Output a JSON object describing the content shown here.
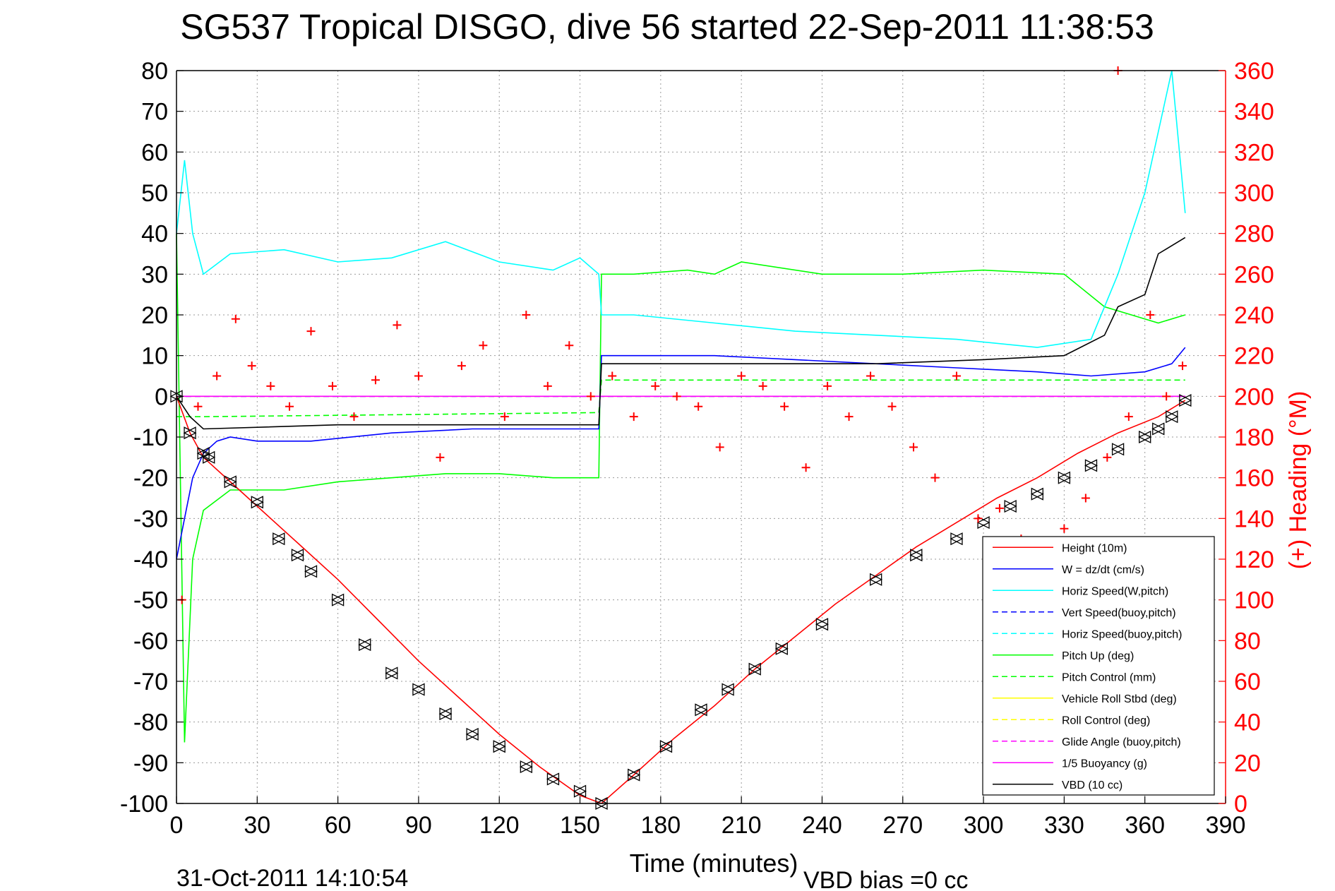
{
  "chart_data": {
    "type": "line",
    "title": "SG537 Tropical DISGO, dive 56 started 22-Sep-2011 11:38:53",
    "xlabel": "Time (minutes)",
    "ylabel_right": "(+) Heading (°M)",
    "footer_left": "31-Oct-2011 14:10:54",
    "footer_right": "VBD bias =0 cc",
    "xlim": [
      0,
      390
    ],
    "ylim": [
      -100,
      80
    ],
    "ylim_right": [
      0,
      360
    ],
    "x_ticks": [
      0,
      30,
      60,
      90,
      120,
      150,
      180,
      210,
      240,
      270,
      300,
      330,
      360,
      390
    ],
    "y_ticks": [
      -100,
      -90,
      -80,
      -70,
      -60,
      -50,
      -40,
      -30,
      -20,
      -10,
      0,
      10,
      20,
      30,
      40,
      50,
      60,
      70,
      80
    ],
    "y_ticks_right": [
      0,
      20,
      40,
      60,
      80,
      100,
      120,
      140,
      160,
      180,
      200,
      220,
      240,
      260,
      280,
      300,
      320,
      340,
      360
    ],
    "grid": true,
    "legend_position": "bottom-right",
    "colors": {
      "height": "#ff0000",
      "w": "#0000ff",
      "horiz_speed": "#00ffff",
      "vert_speed_model": "#0000ff",
      "horiz_speed_model": "#00ffff",
      "pitch": "#00ff00",
      "pitch_control": "#00ff00",
      "roll": "#ffff00",
      "roll_control": "#ffff00",
      "glide_angle": "#ff00ff",
      "buoyancy": "#ff00ff",
      "vbd": "#000000",
      "heading": "#ff0000",
      "right_axis": "#ff0000"
    },
    "series": [
      {
        "name": "Height (10m)",
        "key": "height",
        "style": "solid",
        "x": [
          0,
          5,
          10,
          20,
          30,
          45,
          60,
          75,
          90,
          105,
          120,
          135,
          150,
          158,
          170,
          185,
          200,
          215,
          230,
          245,
          260,
          275,
          290,
          305,
          320,
          335,
          350,
          365,
          375
        ],
        "y": [
          0,
          -9,
          -15,
          -21,
          -27,
          -36,
          -45,
          -55,
          -65,
          -74,
          -83,
          -91,
          -98,
          -100,
          -93,
          -84,
          -76,
          -67,
          -59,
          -51,
          -44,
          -37,
          -31,
          -25,
          -20,
          -14,
          -9,
          -5,
          -1
        ]
      },
      {
        "name": "W = dz/dt (cm/s)",
        "key": "w",
        "style": "solid",
        "x": [
          0,
          3,
          6,
          10,
          15,
          20,
          30,
          50,
          80,
          110,
          140,
          157,
          158,
          170,
          200,
          230,
          260,
          290,
          320,
          340,
          360,
          370,
          375
        ],
        "y": [
          -40,
          -30,
          -20,
          -14,
          -11,
          -10,
          -11,
          -11,
          -9,
          -8,
          -8,
          -8,
          10,
          10,
          10,
          9,
          8,
          7,
          6,
          5,
          6,
          8,
          12
        ]
      },
      {
        "name": "Horiz Speed(W,pitch)",
        "key": "horiz_speed",
        "style": "solid",
        "x": [
          0,
          3,
          6,
          10,
          20,
          40,
          60,
          80,
          100,
          120,
          140,
          150,
          157,
          158,
          170,
          200,
          230,
          260,
          290,
          320,
          340,
          350,
          360,
          370,
          375
        ],
        "y": [
          40,
          58,
          40,
          30,
          35,
          36,
          33,
          34,
          38,
          33,
          31,
          34,
          30,
          20,
          20,
          18,
          16,
          15,
          14,
          12,
          14,
          30,
          50,
          80,
          45
        ]
      },
      {
        "name": "Vert Speed(buoy,pitch)",
        "key": "vert_speed_model",
        "style": "dashed",
        "x": [
          0,
          375
        ],
        "y": [
          0,
          0
        ]
      },
      {
        "name": "Horiz Speed(buoy,pitch)",
        "key": "horiz_speed_model",
        "style": "dashed",
        "x": [
          0,
          375
        ],
        "y": [
          0,
          0
        ]
      },
      {
        "name": "Pitch Up (deg)",
        "key": "pitch",
        "style": "solid",
        "x": [
          0,
          3,
          6,
          10,
          20,
          40,
          60,
          80,
          100,
          120,
          140,
          157,
          158,
          170,
          190,
          200,
          210,
          240,
          270,
          300,
          330,
          345,
          355,
          365,
          375
        ],
        "y": [
          40,
          -85,
          -40,
          -28,
          -23,
          -23,
          -21,
          -20,
          -19,
          -19,
          -20,
          -20,
          30,
          30,
          31,
          30,
          33,
          30,
          30,
          31,
          30,
          22,
          20,
          18,
          20
        ]
      },
      {
        "name": "Pitch Control (mm)",
        "key": "pitch_control",
        "style": "dashed",
        "x": [
          0,
          10,
          157,
          158,
          375
        ],
        "y": [
          -5,
          -5,
          -4,
          4,
          4
        ]
      },
      {
        "name": "Vehicle Roll Stbd (deg)",
        "key": "roll",
        "style": "solid",
        "x": [
          0,
          10,
          30,
          60,
          90,
          120,
          150,
          180,
          210,
          240,
          270,
          300,
          330,
          360,
          375
        ],
        "y": [
          0,
          0,
          0,
          0,
          0,
          0,
          0,
          0,
          0,
          0,
          0,
          0,
          0,
          0,
          0
        ]
      },
      {
        "name": "Roll Control (deg)",
        "key": "roll_control",
        "style": "dashed",
        "x": [
          0,
          375
        ],
        "y": [
          0,
          0
        ]
      },
      {
        "name": "Glide Angle (buoy,pitch)",
        "key": "glide_angle",
        "style": "dashed",
        "x": [
          0,
          375
        ],
        "y": [
          0,
          0
        ]
      },
      {
        "name": "1/5 Buoyancy (g)",
        "key": "buoyancy",
        "style": "solid",
        "x": [
          0,
          375
        ],
        "y": [
          0,
          0
        ]
      },
      {
        "name": "VBD (10 cc)",
        "key": "vbd",
        "style": "solid",
        "x": [
          0,
          5,
          10,
          60,
          100,
          157,
          158,
          200,
          260,
          300,
          330,
          345,
          350,
          360,
          365,
          375
        ],
        "y": [
          0,
          -5,
          -8,
          -7,
          -7,
          -7,
          8,
          8,
          8,
          9,
          10,
          15,
          22,
          25,
          35,
          39
        ]
      },
      {
        "name": "(+) Heading",
        "key": "heading",
        "axis": "right",
        "style": "plus",
        "x": [
          2,
          8,
          15,
          22,
          28,
          35,
          42,
          50,
          58,
          66,
          74,
          82,
          90,
          98,
          106,
          114,
          122,
          130,
          138,
          146,
          154,
          162,
          170,
          178,
          186,
          194,
          202,
          210,
          218,
          226,
          234,
          242,
          250,
          258,
          266,
          274,
          282,
          290,
          298,
          306,
          314,
          322,
          330,
          338,
          346,
          350,
          354,
          362,
          368,
          374
        ],
        "y": [
          100,
          195,
          210,
          238,
          215,
          205,
          195,
          232,
          205,
          190,
          208,
          235,
          210,
          170,
          215,
          225,
          190,
          240,
          205,
          225,
          200,
          210,
          190,
          205,
          200,
          195,
          175,
          210,
          205,
          195,
          165,
          205,
          190,
          210,
          195,
          175,
          160,
          210,
          140,
          145,
          130,
          120,
          135,
          150,
          170,
          360,
          190,
          240,
          200,
          215
        ]
      }
    ],
    "markers_black": {
      "x": [
        0,
        5,
        10,
        12,
        20,
        30,
        38,
        45,
        50,
        60,
        70,
        80,
        90,
        100,
        110,
        120,
        130,
        140,
        150,
        158,
        170,
        182,
        195,
        205,
        215,
        225,
        240,
        260,
        275,
        290,
        300,
        310,
        320,
        330,
        340,
        350,
        360,
        365,
        370,
        375
      ],
      "y": [
        0,
        -9,
        -14,
        -15,
        -21,
        -26,
        -35,
        -39,
        -43,
        -50,
        -61,
        -68,
        -72,
        -78,
        -83,
        -86,
        -91,
        -94,
        -97,
        -100,
        -93,
        -86,
        -77,
        -72,
        -67,
        -62,
        -56,
        -45,
        -39,
        -35,
        -31,
        -27,
        -24,
        -20,
        -17,
        -13,
        -10,
        -8,
        -5,
        -1
      ]
    }
  }
}
